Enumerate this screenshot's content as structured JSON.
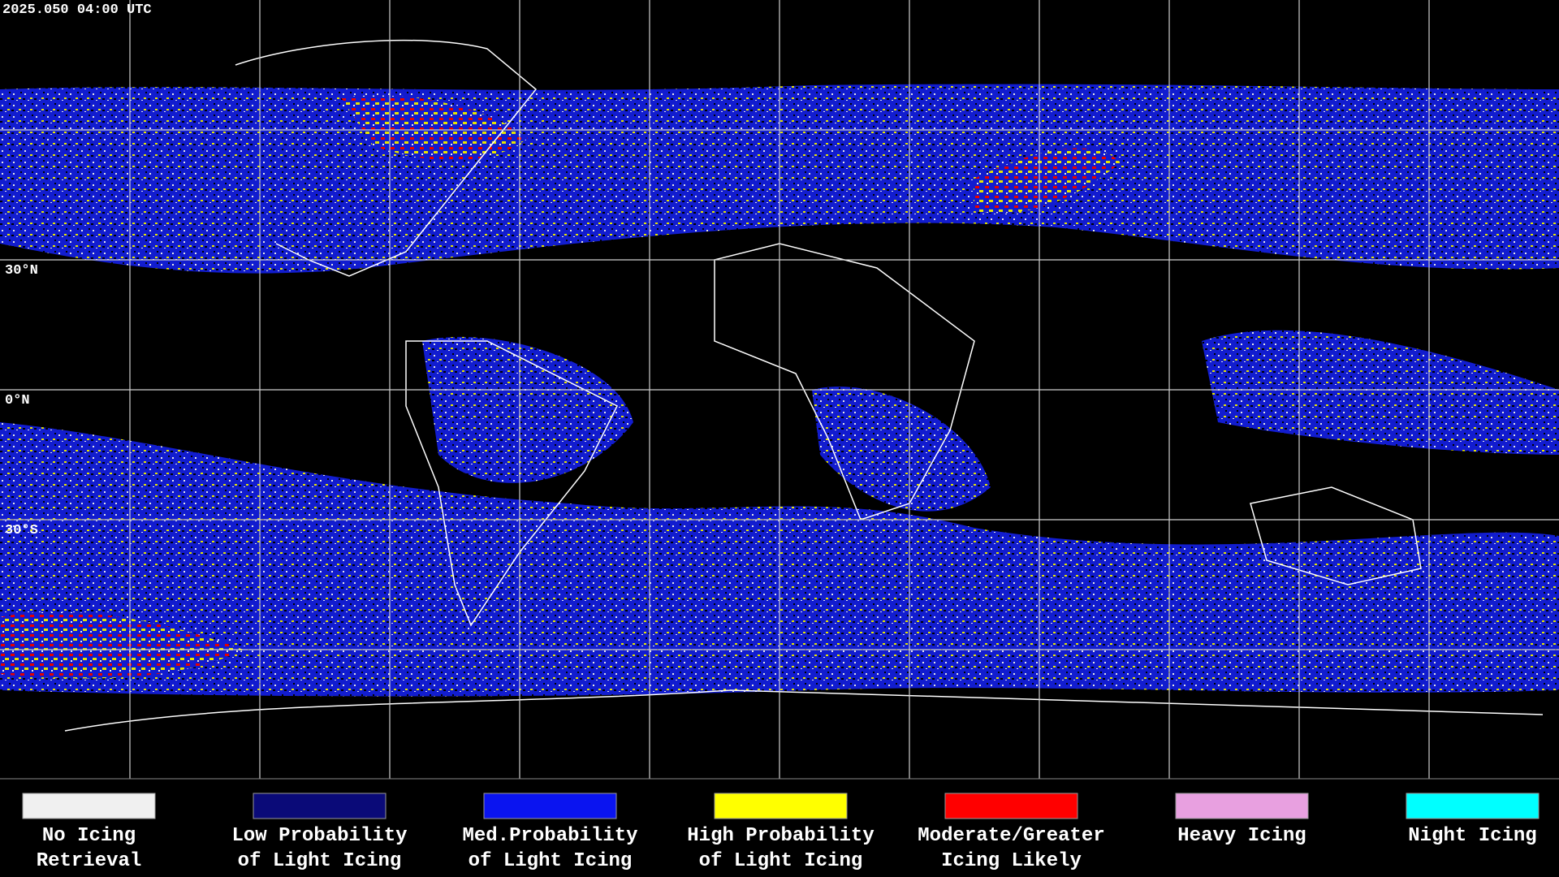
{
  "header": {
    "timestamp": "2025.050 04:00 UTC"
  },
  "map": {
    "latitude_labels": [
      "30°N",
      "0°N",
      "30°S"
    ]
  },
  "legend": {
    "items": [
      {
        "color": "#f0f0f0",
        "lines": [
          "No Icing",
          "Retrieval"
        ]
      },
      {
        "color": "#0a0a78",
        "lines": [
          "Low Probability",
          "of Light Icing"
        ]
      },
      {
        "color": "#0a14f0",
        "lines": [
          "Med.Probability",
          "of Light Icing"
        ]
      },
      {
        "color": "#ffff00",
        "lines": [
          "High Probability",
          "of Light Icing"
        ]
      },
      {
        "color": "#ff0000",
        "lines": [
          "Moderate/Greater",
          "Icing Likely"
        ]
      },
      {
        "color": "#e8a0e0",
        "lines": [
          "Heavy Icing"
        ]
      },
      {
        "color": "#00ffff",
        "lines": [
          "Night Icing"
        ]
      }
    ]
  }
}
